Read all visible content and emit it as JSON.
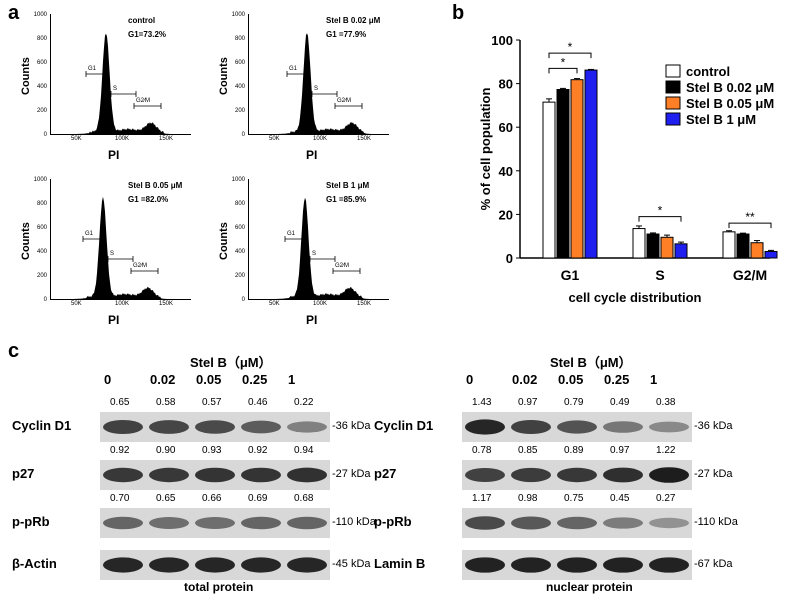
{
  "panels": {
    "a": "a",
    "b": "b",
    "c": "c"
  },
  "flow": {
    "y_ticks": [
      "1000",
      "800",
      "600",
      "400",
      "200",
      "0"
    ],
    "x_ticks": [
      "50K",
      "100K",
      "150K"
    ],
    "y_label": "Counts",
    "x_label": "PI",
    "gates": {
      "g1": "G1",
      "s": "S",
      "g2m": "G2∕M"
    },
    "plots": [
      {
        "line1": "control",
        "line2": "G1=73.2%"
      },
      {
        "line1": "Stel B 0.02 μM",
        "line2": "G1 =77.9%"
      },
      {
        "line1": "Stel B 0.05 μM",
        "line2": "G1 =82.0%"
      },
      {
        "line1": "Stel B 1 μM",
        "line2": "G1 =85.9%"
      }
    ]
  },
  "chart_data": {
    "type": "bar",
    "categories": [
      "G1",
      "S",
      "G2/M"
    ],
    "series": [
      {
        "name": "control",
        "values": [
          71.5,
          13.5,
          12
        ],
        "errors": [
          1.5,
          1.2,
          0.5
        ],
        "color": "#ffffff"
      },
      {
        "name": "Stel B 0.02 μM",
        "values": [
          77.3,
          11,
          11
        ],
        "errors": [
          0.5,
          0.5,
          0.4
        ],
        "color": "#000000"
      },
      {
        "name": "Stel B 0.05 μM",
        "values": [
          81.8,
          9.5,
          7
        ],
        "errors": [
          0.5,
          1.0,
          1.0
        ],
        "color": "#ff7f27"
      },
      {
        "name": "Stel B 1 μM",
        "values": [
          86.2,
          6.5,
          3
        ],
        "errors": [
          0.3,
          0.8,
          0.5
        ],
        "color": "#1f1ff0"
      }
    ],
    "ylim": [
      0,
      100
    ],
    "yticks": [
      "0",
      "20",
      "40",
      "60",
      "80",
      "100"
    ],
    "ylabel": "% of cell population",
    "xlabel": "cell cycle distribution",
    "significance": [
      "*",
      "*",
      "*",
      "**"
    ],
    "legend": [
      "control",
      "Stel B 0.02 μM",
      "Stel B 0.05 μM",
      "Stel B 1 μM"
    ]
  },
  "blots": {
    "treatment_header": "Stel B（μM）",
    "lanes": [
      "0",
      "0.02",
      "0.05",
      "0.25",
      "1"
    ],
    "left": {
      "caption": "total protein",
      "rows": [
        {
          "label": "Cyclin D1",
          "kda": "-36 kDa",
          "values": [
            "0.65",
            "0.58",
            "0.57",
            "0.46",
            "0.22"
          ],
          "intensity": [
            0.75,
            0.72,
            0.7,
            0.6,
            0.4
          ]
        },
        {
          "label": "p27",
          "kda": "-27 kDa",
          "values": [
            "0.92",
            "0.90",
            "0.93",
            "0.92",
            "0.94"
          ],
          "intensity": [
            0.8,
            0.8,
            0.82,
            0.82,
            0.84
          ]
        },
        {
          "label": "p-pRb",
          "kda": "-110 kDa",
          "values": [
            "0.70",
            "0.65",
            "0.66",
            "0.69",
            "0.68"
          ],
          "intensity": [
            0.55,
            0.5,
            0.5,
            0.55,
            0.55
          ]
        },
        {
          "label": "β-Actin",
          "kda": "-45 kDa",
          "values": [],
          "intensity": [
            0.9,
            0.9,
            0.9,
            0.9,
            0.9
          ]
        }
      ]
    },
    "right": {
      "caption": "nuclear protein",
      "rows": [
        {
          "label": "Cyclin D1",
          "kda": "-36 kDa",
          "values": [
            "1.43",
            "0.97",
            "0.79",
            "0.49",
            "0.38"
          ],
          "intensity": [
            0.9,
            0.75,
            0.65,
            0.45,
            0.35
          ]
        },
        {
          "label": "p27",
          "kda": "-27 kDa",
          "values": [
            "0.78",
            "0.85",
            "0.89",
            "0.97",
            "1.22"
          ],
          "intensity": [
            0.75,
            0.78,
            0.8,
            0.85,
            0.95
          ]
        },
        {
          "label": "p-pRb",
          "kda": "-110 kDa",
          "values": [
            "1.17",
            "0.98",
            "0.75",
            "0.45",
            "0.27"
          ],
          "intensity": [
            0.7,
            0.62,
            0.55,
            0.42,
            0.3
          ]
        },
        {
          "label": "Lamin B",
          "kda": "-67 kDa",
          "values": [],
          "intensity": [
            0.92,
            0.92,
            0.92,
            0.92,
            0.92
          ]
        }
      ]
    }
  }
}
